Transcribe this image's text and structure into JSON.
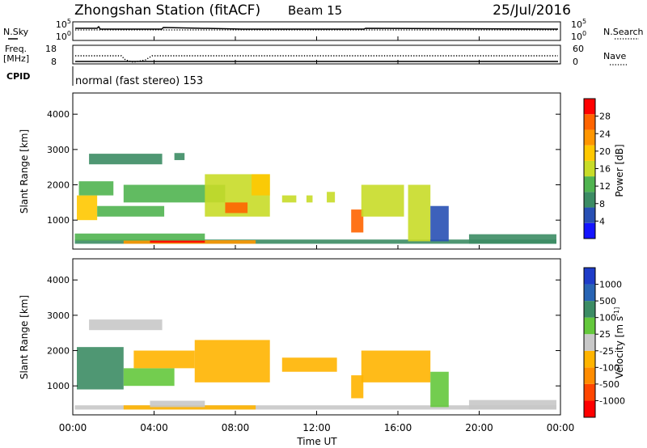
{
  "header": {
    "station": "Zhongshan Station (fitACF)",
    "beam": "Beam 15",
    "date": "25/Jul/2016"
  },
  "top_panels": {
    "nsky_label": "N.Sky",
    "nsky_ticks": [
      "10^5",
      "10^0"
    ],
    "nsearch_label": "N.Search",
    "nsearch_ticks": [
      "10^5",
      "10^0"
    ],
    "freq_label": "Freq.",
    "freq_unit": "[MHz]",
    "freq_ticks": [
      "18",
      "8"
    ],
    "nave_label": "Nave",
    "nave_ticks": [
      "60",
      "0"
    ],
    "cpid_label": "CPID",
    "cpid_text": "normal (fast stereo) 153"
  },
  "x_axis": {
    "label": "Time UT",
    "ticks": [
      "00:00",
      "04:00",
      "08:00",
      "12:00",
      "16:00",
      "20:00",
      "00:00"
    ]
  },
  "colors": {
    "power_scale": [
      "#1414ff",
      "#2850b4",
      "#3c8c64",
      "#50b450",
      "#c8dc28",
      "#ffc800",
      "#ff9600",
      "#ff6400",
      "#ff0000"
    ],
    "velocity_scale": [
      "#ff0000",
      "#ff4600",
      "#ff8c00",
      "#ffb400",
      "#c8c8c8",
      "#64c83c",
      "#3c8c64",
      "#2864b4",
      "#1e3cc8"
    ]
  },
  "chart_data": [
    {
      "type": "heatmap",
      "title": "",
      "ylabel": "Slant Range [km]",
      "yticks": [
        "1000",
        "2000",
        "3000",
        "4000"
      ],
      "ylim": [
        180,
        4600
      ],
      "xlim": [
        0,
        24
      ],
      "colorbar": {
        "label": "Power [dB]",
        "ticks": [
          "4",
          "8",
          "12",
          "16",
          "20",
          "24",
          "28"
        ],
        "range": [
          0,
          30
        ]
      },
      "regions": [
        {
          "t": [
            0.1,
            23.8
          ],
          "r": [
            330,
            450
          ],
          "value": 8
        },
        {
          "t": [
            2.5,
            9.0
          ],
          "r": [
            330,
            430
          ],
          "value": 22
        },
        {
          "t": [
            3.8,
            6.5
          ],
          "r": [
            360,
            420
          ],
          "value": 27
        },
        {
          "t": [
            0.1,
            6.5
          ],
          "r": [
            420,
            620
          ],
          "value": 12
        },
        {
          "t": [
            0.2,
            1.2
          ],
          "r": [
            1000,
            1700
          ],
          "value": 18
        },
        {
          "t": [
            1.2,
            4.5
          ],
          "r": [
            1100,
            1400
          ],
          "value": 12
        },
        {
          "t": [
            0.3,
            2.0
          ],
          "r": [
            1700,
            2100
          ],
          "value": 10
        },
        {
          "t": [
            2.5,
            7.5
          ],
          "r": [
            1500,
            2000
          ],
          "value": 13
        },
        {
          "t": [
            6.5,
            9.7
          ],
          "r": [
            1100,
            2300
          ],
          "value": 15
        },
        {
          "t": [
            7.5,
            8.6
          ],
          "r": [
            1200,
            1500
          ],
          "value": 24
        },
        {
          "t": [
            8.8,
            9.7
          ],
          "r": [
            1700,
            2300
          ],
          "value": 19
        },
        {
          "t": [
            0.8,
            4.4
          ],
          "r": [
            2580,
            2880
          ],
          "value": 8
        },
        {
          "t": [
            5.0,
            5.5
          ],
          "r": [
            2700,
            2900
          ],
          "value": 8
        },
        {
          "t": [
            10.3,
            11.0
          ],
          "r": [
            1500,
            1700
          ],
          "value": 16
        },
        {
          "t": [
            11.5,
            11.8
          ],
          "r": [
            1500,
            1700
          ],
          "value": 16
        },
        {
          "t": [
            12.5,
            12.9
          ],
          "r": [
            1500,
            1800
          ],
          "value": 16
        },
        {
          "t": [
            13.7,
            14.3
          ],
          "r": [
            650,
            1300
          ],
          "value": 25
        },
        {
          "t": [
            14.2,
            16.3
          ],
          "r": [
            1100,
            2000
          ],
          "value": 16
        },
        {
          "t": [
            16.5,
            17.6
          ],
          "r": [
            400,
            2000
          ],
          "value": 14
        },
        {
          "t": [
            17.6,
            18.5
          ],
          "r": [
            400,
            1400
          ],
          "value": 6
        },
        {
          "t": [
            19.5,
            23.8
          ],
          "r": [
            330,
            600
          ],
          "value": 8
        }
      ]
    },
    {
      "type": "heatmap",
      "title": "",
      "ylabel": "Slant Range [km]",
      "yticks": [
        "1000",
        "2000",
        "3000",
        "4000"
      ],
      "ylim": [
        180,
        4600
      ],
      "xlim": [
        0,
        24
      ],
      "colorbar": {
        "label": "Velocity [m s^-1]",
        "ticks": [
          "-1000",
          "-500",
          "-100",
          "-25",
          "25",
          "100",
          "500",
          "1000"
        ],
        "range": [
          -1200,
          1200
        ]
      },
      "regions": [
        {
          "t": [
            0.1,
            23.8
          ],
          "r": [
            330,
            450
          ],
          "value": 60
        },
        {
          "t": [
            2.5,
            9.0
          ],
          "r": [
            330,
            450
          ],
          "value": -150
        },
        {
          "t": [
            3.8,
            6.5
          ],
          "r": [
            400,
            580
          ],
          "value": -80
        },
        {
          "t": [
            0.2,
            2.5
          ],
          "r": [
            900,
            2100
          ],
          "value": 500
        },
        {
          "t": [
            2.5,
            5.0
          ],
          "r": [
            1000,
            1500
          ],
          "value": 300
        },
        {
          "t": [
            3.0,
            6.0
          ],
          "r": [
            1500,
            2000
          ],
          "value": -200
        },
        {
          "t": [
            6.0,
            9.7
          ],
          "r": [
            1100,
            2300
          ],
          "value": -250
        },
        {
          "t": [
            0.8,
            4.4
          ],
          "r": [
            2580,
            2880
          ],
          "value": 0
        },
        {
          "t": [
            10.3,
            13.0
          ],
          "r": [
            1400,
            1800
          ],
          "value": -250
        },
        {
          "t": [
            13.7,
            14.3
          ],
          "r": [
            650,
            1300
          ],
          "value": -400
        },
        {
          "t": [
            14.2,
            17.6
          ],
          "r": [
            1100,
            2000
          ],
          "value": -250
        },
        {
          "t": [
            17.6,
            18.5
          ],
          "r": [
            400,
            1400
          ],
          "value": 200
        },
        {
          "t": [
            19.5,
            23.8
          ],
          "r": [
            330,
            600
          ],
          "value": 60
        }
      ]
    }
  ]
}
